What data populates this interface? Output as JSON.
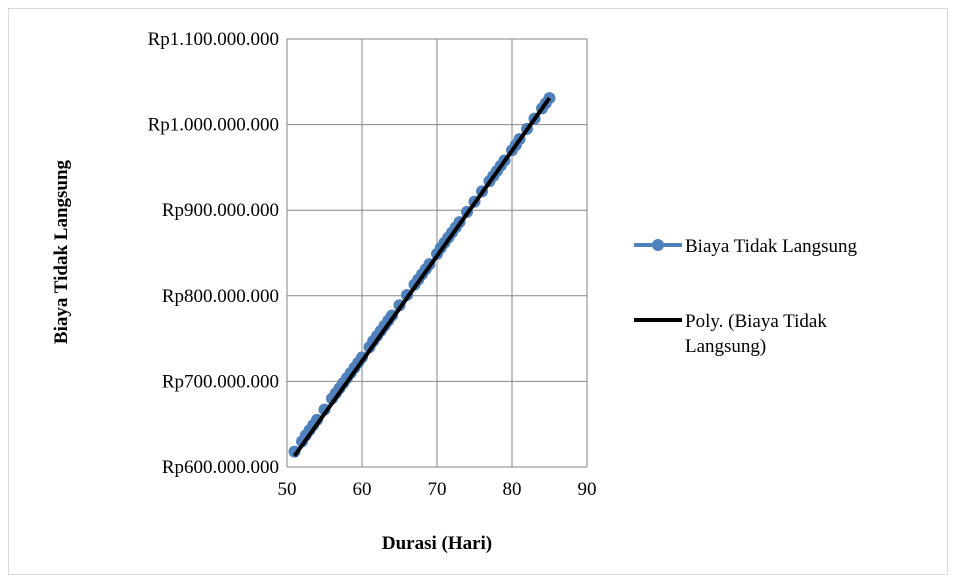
{
  "chart_data": {
    "type": "scatter",
    "title": "",
    "xlabel": "Durasi (Hari)",
    "ylabel": "Biaya Tidak Langsung",
    "xlim": [
      50,
      90
    ],
    "ylim": [
      600000000,
      1100000000
    ],
    "xticks": [
      50,
      60,
      70,
      80,
      90
    ],
    "xtick_labels": [
      "50",
      "60",
      "70",
      "80",
      "90"
    ],
    "yticks": [
      600000000,
      700000000,
      800000000,
      900000000,
      1000000000,
      1100000000
    ],
    "ytick_labels": [
      "Rp600.000.000",
      "Rp700.000.000",
      "Rp800.000.000",
      "Rp900.000.000",
      "Rp1.000.000.000",
      "Rp1.100.000.000"
    ],
    "grid": true,
    "legend_position": "right",
    "series": [
      {
        "name": "Biaya Tidak Langsung",
        "color": "#4f81bd",
        "marker": "circle",
        "x": [
          51,
          52,
          52.5,
          53,
          53.5,
          54,
          55,
          56,
          56.5,
          57,
          57.5,
          58,
          58.5,
          59,
          59.5,
          60,
          61,
          61.5,
          62,
          62.5,
          63,
          63.5,
          64,
          65,
          66,
          67,
          67.5,
          68,
          68.5,
          69,
          70,
          70.5,
          71,
          71.5,
          72,
          72.5,
          73,
          74,
          75,
          76,
          77,
          77.5,
          78,
          78.5,
          79,
          80,
          80.5,
          81,
          82,
          83,
          84,
          84.5,
          85
        ],
        "y": [
          618000000,
          630000000,
          637000000,
          643000000,
          649000000,
          655000000,
          667000000,
          680000000,
          686000000,
          692000000,
          698000000,
          704000000,
          710000000,
          716000000,
          722000000,
          728000000,
          740000000,
          747000000,
          753000000,
          759000000,
          765000000,
          771000000,
          777000000,
          789000000,
          801000000,
          813000000,
          819000000,
          825000000,
          831000000,
          837000000,
          849000000,
          856000000,
          862000000,
          868000000,
          874000000,
          880000000,
          886000000,
          898000000,
          910000000,
          922000000,
          934000000,
          940000000,
          946000000,
          952000000,
          958000000,
          970000000,
          976000000,
          983000000,
          995000000,
          1007000000,
          1019000000,
          1025000000,
          1031000000
        ]
      },
      {
        "name": "Poly. (Biaya Tidak Langsung)",
        "color": "#000000",
        "type": "trendline",
        "x": [
          51,
          85
        ],
        "y": [
          613000000,
          1031000000
        ]
      }
    ]
  },
  "legend": {
    "series1": "Biaya Tidak Langsung",
    "series2_line1": "Poly. (Biaya Tidak",
    "series2_line2": "Langsung)"
  }
}
